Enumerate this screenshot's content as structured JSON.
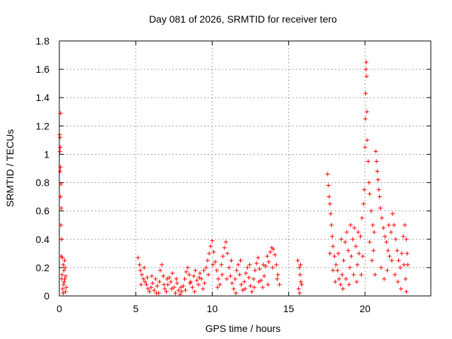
{
  "chart_data": {
    "type": "scatter",
    "title": "Day 081 of 2026, SRMTID for receiver tero",
    "xlabel": "GPS time / hours",
    "ylabel": "SRMTID / TECUs",
    "xlim": [
      0,
      24.3
    ],
    "ylim": [
      0,
      1.8
    ],
    "xticks": [
      0,
      5,
      10,
      15,
      20
    ],
    "yticks": [
      0,
      0.2,
      0.4,
      0.6,
      0.8,
      1,
      1.2,
      1.4,
      1.6,
      1.8
    ],
    "xtick_labels": [
      "0",
      "5",
      "10",
      "15",
      "20"
    ],
    "ytick_labels": [
      "0",
      "0.2",
      "0.4",
      "0.6",
      "0.8",
      "1",
      "1.2",
      "1.4",
      "1.6",
      "1.8"
    ],
    "grid": true,
    "legend": "none",
    "marker": "plus",
    "color": "#ff0000",
    "series": [
      {
        "name": "SRMTID",
        "points": [
          [
            0.02,
            1.14
          ],
          [
            0.05,
            1.12
          ],
          [
            0.08,
            1.29
          ],
          [
            0.06,
            1.05
          ],
          [
            0.04,
            1.02
          ],
          [
            0.07,
            0.91
          ],
          [
            0.05,
            0.88
          ],
          [
            0.1,
            0.79
          ],
          [
            0.08,
            0.7
          ],
          [
            0.12,
            0.62
          ],
          [
            0.1,
            0.5
          ],
          [
            0.15,
            0.4
          ],
          [
            0.12,
            0.28
          ],
          [
            0.2,
            0.27
          ],
          [
            0.25,
            0.22
          ],
          [
            0.3,
            0.18
          ],
          [
            0.18,
            0.15
          ],
          [
            0.35,
            0.12
          ],
          [
            0.28,
            0.08
          ],
          [
            0.22,
            0.05
          ],
          [
            0.4,
            0.03
          ],
          [
            0.32,
            0.1
          ],
          [
            0.38,
            0.2
          ],
          [
            0.15,
            0.12
          ],
          [
            0.45,
            0.06
          ],
          [
            0.42,
            0.14
          ],
          [
            0.25,
            0.02
          ],
          [
            0.35,
            0.25
          ],
          [
            5.15,
            0.27
          ],
          [
            5.25,
            0.22
          ],
          [
            5.3,
            0.18
          ],
          [
            5.4,
            0.15
          ],
          [
            5.5,
            0.12
          ],
          [
            5.6,
            0.1
          ],
          [
            5.7,
            0.08
          ],
          [
            5.8,
            0.05
          ],
          [
            5.9,
            0.03
          ],
          [
            6.0,
            0.06
          ],
          [
            6.1,
            0.09
          ],
          [
            6.2,
            0.04
          ],
          [
            6.3,
            0.12
          ],
          [
            6.4,
            0.07
          ],
          [
            6.5,
            0.02
          ],
          [
            6.6,
            0.18
          ],
          [
            6.7,
            0.22
          ],
          [
            6.8,
            0.14
          ],
          [
            6.9,
            0.05
          ],
          [
            7.0,
            0.03
          ],
          [
            7.1,
            0.08
          ],
          [
            7.2,
            0.13
          ],
          [
            7.3,
            0.1
          ],
          [
            7.4,
            0.16
          ],
          [
            7.5,
            0.06
          ],
          [
            7.6,
            0.02
          ],
          [
            7.7,
            0.09
          ],
          [
            7.8,
            0.04
          ],
          [
            7.9,
            0.01
          ],
          [
            8.0,
            0.03
          ],
          [
            8.1,
            0.07
          ],
          [
            8.2,
            0.12
          ],
          [
            8.3,
            0.17
          ],
          [
            8.4,
            0.2
          ],
          [
            8.5,
            0.15
          ],
          [
            8.6,
            0.1
          ],
          [
            8.7,
            0.06
          ],
          [
            8.8,
            0.14
          ],
          [
            8.9,
            0.18
          ],
          [
            9.0,
            0.11
          ],
          [
            9.1,
            0.08
          ],
          [
            9.2,
            0.16
          ],
          [
            9.3,
            0.12
          ],
          [
            9.4,
            0.05
          ],
          [
            9.5,
            0.09
          ],
          [
            9.6,
            0.2
          ],
          [
            9.7,
            0.25
          ],
          [
            9.8,
            0.3
          ],
          [
            9.9,
            0.35
          ],
          [
            10.0,
            0.39
          ],
          [
            10.1,
            0.31
          ],
          [
            10.2,
            0.24
          ],
          [
            10.3,
            0.18
          ],
          [
            10.4,
            0.12
          ],
          [
            10.5,
            0.08
          ],
          [
            10.6,
            0.22
          ],
          [
            10.7,
            0.28
          ],
          [
            10.8,
            0.34
          ],
          [
            10.9,
            0.38
          ],
          [
            11.0,
            0.3
          ],
          [
            11.1,
            0.2
          ],
          [
            11.2,
            0.14
          ],
          [
            11.3,
            0.09
          ],
          [
            11.4,
            0.05
          ],
          [
            11.5,
            0.12
          ],
          [
            11.6,
            0.18
          ],
          [
            11.7,
            0.22
          ],
          [
            11.8,
            0.15
          ],
          [
            11.9,
            0.08
          ],
          [
            12.0,
            0.04
          ],
          [
            12.1,
            0.1
          ],
          [
            12.2,
            0.16
          ],
          [
            12.3,
            0.2
          ],
          [
            12.4,
            0.13
          ],
          [
            12.5,
            0.07
          ],
          [
            12.6,
            0.03
          ],
          [
            12.7,
            0.12
          ],
          [
            12.8,
            0.18
          ],
          [
            12.9,
            0.23
          ],
          [
            13.0,
            0.27
          ],
          [
            13.1,
            0.19
          ],
          [
            13.2,
            0.11
          ],
          [
            13.3,
            0.06
          ],
          [
            13.4,
            0.14
          ],
          [
            13.5,
            0.21
          ],
          [
            13.6,
            0.28
          ],
          [
            13.7,
            0.24
          ],
          [
            13.8,
            0.31
          ],
          [
            13.9,
            0.34
          ],
          [
            14.0,
            0.33
          ],
          [
            14.1,
            0.29
          ],
          [
            14.2,
            0.22
          ],
          [
            14.3,
            0.15
          ],
          [
            14.4,
            0.08
          ],
          [
            5.35,
            0.08
          ],
          [
            5.55,
            0.2
          ],
          [
            5.75,
            0.13
          ],
          [
            6.05,
            0.14
          ],
          [
            6.35,
            0.02
          ],
          [
            6.55,
            0.1
          ],
          [
            6.85,
            0.08
          ],
          [
            7.05,
            0.12
          ],
          [
            7.35,
            0.05
          ],
          [
            7.65,
            0.12
          ],
          [
            7.95,
            0.06
          ],
          [
            8.25,
            0.04
          ],
          [
            8.55,
            0.09
          ],
          [
            8.85,
            0.03
          ],
          [
            9.15,
            0.13
          ],
          [
            9.45,
            0.18
          ],
          [
            9.75,
            0.15
          ],
          [
            10.05,
            0.22
          ],
          [
            10.35,
            0.06
          ],
          [
            10.65,
            0.15
          ],
          [
            10.95,
            0.12
          ],
          [
            11.25,
            0.25
          ],
          [
            11.55,
            0.02
          ],
          [
            11.85,
            0.25
          ],
          [
            12.15,
            0.05
          ],
          [
            12.45,
            0.22
          ],
          [
            12.75,
            0.06
          ],
          [
            13.05,
            0.1
          ],
          [
            13.35,
            0.22
          ],
          [
            13.65,
            0.08
          ],
          [
            13.95,
            0.2
          ],
          [
            14.25,
            0.12
          ],
          [
            15.6,
            0.25
          ],
          [
            15.7,
            0.2
          ],
          [
            15.75,
            0.15
          ],
          [
            15.8,
            0.1
          ],
          [
            15.65,
            0.05
          ],
          [
            15.72,
            0.02
          ],
          [
            15.85,
            0.08
          ],
          [
            15.78,
            0.22
          ],
          [
            17.55,
            0.86
          ],
          [
            17.6,
            0.78
          ],
          [
            17.65,
            0.7
          ],
          [
            17.7,
            0.65
          ],
          [
            17.75,
            0.58
          ],
          [
            17.8,
            0.5
          ],
          [
            17.85,
            0.42
          ],
          [
            17.9,
            0.35
          ],
          [
            18.0,
            0.28
          ],
          [
            18.1,
            0.22
          ],
          [
            18.2,
            0.18
          ],
          [
            18.3,
            0.12
          ],
          [
            18.4,
            0.08
          ],
          [
            18.5,
            0.15
          ],
          [
            18.6,
            0.25
          ],
          [
            18.7,
            0.38
          ],
          [
            18.8,
            0.45
          ],
          [
            18.9,
            0.32
          ],
          [
            19.0,
            0.2
          ],
          [
            19.1,
            0.28
          ],
          [
            19.2,
            0.4
          ],
          [
            19.3,
            0.48
          ],
          [
            19.4,
            0.35
          ],
          [
            19.5,
            0.22
          ],
          [
            19.6,
            0.3
          ],
          [
            19.7,
            0.42
          ],
          [
            19.8,
            0.55
          ],
          [
            19.9,
            0.65
          ],
          [
            19.95,
            0.75
          ],
          [
            20.0,
            1.05
          ],
          [
            20.02,
            1.25
          ],
          [
            20.04,
            1.43
          ],
          [
            20.06,
            1.6
          ],
          [
            20.08,
            1.65
          ],
          [
            20.1,
            1.55
          ],
          [
            20.12,
            1.3
          ],
          [
            20.14,
            1.1
          ],
          [
            20.2,
            0.95
          ],
          [
            20.25,
            0.8
          ],
          [
            20.3,
            0.72
          ],
          [
            20.4,
            0.6
          ],
          [
            20.5,
            0.5
          ],
          [
            20.6,
            0.45
          ],
          [
            20.7,
            1.02
          ],
          [
            20.75,
            0.95
          ],
          [
            20.8,
            0.88
          ],
          [
            20.85,
            0.82
          ],
          [
            20.9,
            0.75
          ],
          [
            20.95,
            0.7
          ],
          [
            21.0,
            0.62
          ],
          [
            21.1,
            0.55
          ],
          [
            21.2,
            0.48
          ],
          [
            21.3,
            0.42
          ],
          [
            21.4,
            0.38
          ],
          [
            21.5,
            0.32
          ],
          [
            21.6,
            0.28
          ],
          [
            21.7,
            0.45
          ],
          [
            21.8,
            0.58
          ],
          [
            21.9,
            0.5
          ],
          [
            22.0,
            0.4
          ],
          [
            22.1,
            0.32
          ],
          [
            22.2,
            0.25
          ],
          [
            22.3,
            0.2
          ],
          [
            22.4,
            0.3
          ],
          [
            22.5,
            0.42
          ],
          [
            22.6,
            0.5
          ],
          [
            22.7,
            0.4
          ],
          [
            22.75,
            0.3
          ],
          [
            22.8,
            0.22
          ],
          [
            17.7,
            0.3
          ],
          [
            17.9,
            0.18
          ],
          [
            18.05,
            0.1
          ],
          [
            18.25,
            0.3
          ],
          [
            18.45,
            0.4
          ],
          [
            18.55,
            0.05
          ],
          [
            18.75,
            0.12
          ],
          [
            18.95,
            0.08
          ],
          [
            19.05,
            0.5
          ],
          [
            19.25,
            0.15
          ],
          [
            19.45,
            0.1
          ],
          [
            19.55,
            0.45
          ],
          [
            19.75,
            0.15
          ],
          [
            19.85,
            0.28
          ],
          [
            20.3,
            0.38
          ],
          [
            20.45,
            0.25
          ],
          [
            20.55,
            0.32
          ],
          [
            20.65,
            0.15
          ],
          [
            21.05,
            0.2
          ],
          [
            21.25,
            0.12
          ],
          [
            21.45,
            0.18
          ],
          [
            21.55,
            0.5
          ],
          [
            21.75,
            0.25
          ],
          [
            21.95,
            0.15
          ],
          [
            22.15,
            0.1
          ],
          [
            22.35,
            0.05
          ],
          [
            22.55,
            0.22
          ],
          [
            22.65,
            0.12
          ],
          [
            22.7,
            0.03
          ]
        ]
      }
    ]
  }
}
